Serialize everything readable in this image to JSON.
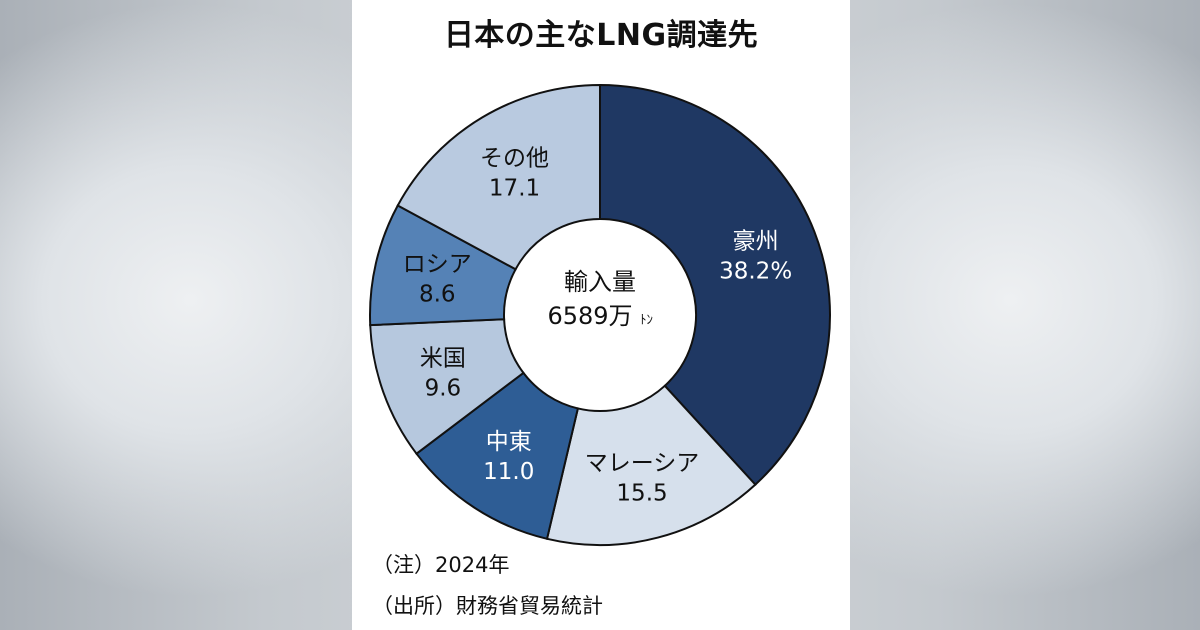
{
  "chart_data": {
    "type": "pie",
    "title": "日本の主なLNG調達先",
    "center_label": {
      "line1": "輸入量",
      "line2_value": "6589万",
      "line2_unit": "ﾄﾝ"
    },
    "slices": [
      {
        "label": "豪州",
        "value": 38.2,
        "value_text": "38.2%",
        "color": "#1f3863",
        "text_color": "#ffffff"
      },
      {
        "label": "マレーシア",
        "value": 15.5,
        "value_text": "15.5",
        "color": "#d6e0ec",
        "text_color": "#111111"
      },
      {
        "label": "中東",
        "value": 11.0,
        "value_text": "11.0",
        "color": "#2e5d95",
        "text_color": "#ffffff"
      },
      {
        "label": "米国",
        "value": 9.6,
        "value_text": "9.6",
        "color": "#b6c8de",
        "text_color": "#111111"
      },
      {
        "label": "ロシア",
        "value": 8.6,
        "value_text": "8.6",
        "color": "#5582b6",
        "text_color": "#111111"
      },
      {
        "label": "その他",
        "value": 17.1,
        "value_text": "17.1",
        "color": "#b9cae0",
        "text_color": "#111111"
      }
    ],
    "unit": "%"
  },
  "notes": {
    "note": "（注）2024年",
    "source": "（出所）財務省貿易統計"
  }
}
